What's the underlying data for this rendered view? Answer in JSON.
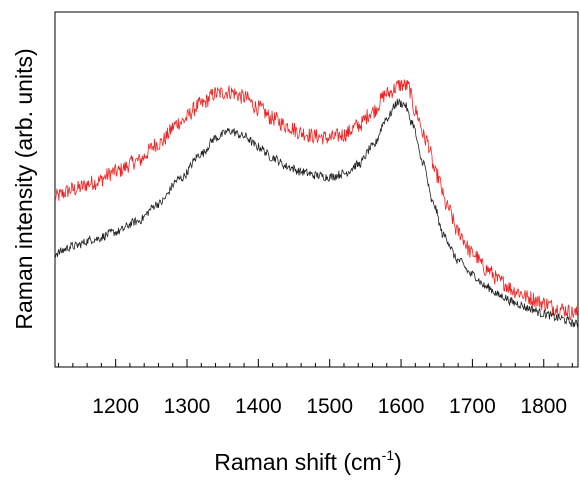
{
  "chart_data": {
    "type": "line",
    "title": "",
    "xlabel": {
      "text": "Raman shift (cm",
      "sup": "-1",
      "close": ")"
    },
    "ylabel": "Raman intensity (arb. units)",
    "xlim": [
      1115,
      1848
    ],
    "ylim": [
      0,
      1
    ],
    "x_ticks_major": [
      1200,
      1300,
      1400,
      1500,
      1600,
      1700,
      1800
    ],
    "x_tick_labels": [
      "1200",
      "1300",
      "1400",
      "1500",
      "1600",
      "1700",
      "1800"
    ],
    "x_ticks_minor_step": 20,
    "y_tick_labels_shown": false,
    "grid": false,
    "legend": "none",
    "series": [
      {
        "color": "#ee2222",
        "noise": 0.022,
        "points": [
          [
            1115,
            0.48
          ],
          [
            1140,
            0.5
          ],
          [
            1170,
            0.52
          ],
          [
            1200,
            0.55
          ],
          [
            1230,
            0.58
          ],
          [
            1260,
            0.63
          ],
          [
            1290,
            0.69
          ],
          [
            1320,
            0.74
          ],
          [
            1340,
            0.77
          ],
          [
            1360,
            0.775
          ],
          [
            1380,
            0.76
          ],
          [
            1400,
            0.73
          ],
          [
            1420,
            0.7
          ],
          [
            1440,
            0.68
          ],
          [
            1460,
            0.66
          ],
          [
            1480,
            0.65
          ],
          [
            1500,
            0.645
          ],
          [
            1520,
            0.655
          ],
          [
            1540,
            0.68
          ],
          [
            1560,
            0.72
          ],
          [
            1580,
            0.77
          ],
          [
            1600,
            0.795
          ],
          [
            1610,
            0.79
          ],
          [
            1620,
            0.72
          ],
          [
            1635,
            0.64
          ],
          [
            1650,
            0.54
          ],
          [
            1665,
            0.45
          ],
          [
            1680,
            0.38
          ],
          [
            1700,
            0.32
          ],
          [
            1720,
            0.275
          ],
          [
            1740,
            0.24
          ],
          [
            1760,
            0.215
          ],
          [
            1780,
            0.195
          ],
          [
            1800,
            0.18
          ],
          [
            1820,
            0.165
          ],
          [
            1848,
            0.15
          ]
        ]
      },
      {
        "color": "#222222",
        "noise": 0.012,
        "points": [
          [
            1115,
            0.32
          ],
          [
            1140,
            0.34
          ],
          [
            1170,
            0.36
          ],
          [
            1200,
            0.38
          ],
          [
            1230,
            0.41
          ],
          [
            1260,
            0.46
          ],
          [
            1290,
            0.53
          ],
          [
            1320,
            0.6
          ],
          [
            1340,
            0.645
          ],
          [
            1360,
            0.665
          ],
          [
            1380,
            0.65
          ],
          [
            1400,
            0.62
          ],
          [
            1420,
            0.59
          ],
          [
            1440,
            0.565
          ],
          [
            1460,
            0.55
          ],
          [
            1480,
            0.54
          ],
          [
            1500,
            0.535
          ],
          [
            1520,
            0.545
          ],
          [
            1540,
            0.57
          ],
          [
            1560,
            0.62
          ],
          [
            1580,
            0.7
          ],
          [
            1595,
            0.745
          ],
          [
            1605,
            0.74
          ],
          [
            1615,
            0.69
          ],
          [
            1630,
            0.58
          ],
          [
            1645,
            0.46
          ],
          [
            1660,
            0.37
          ],
          [
            1680,
            0.3
          ],
          [
            1700,
            0.26
          ],
          [
            1720,
            0.225
          ],
          [
            1740,
            0.2
          ],
          [
            1760,
            0.18
          ],
          [
            1780,
            0.165
          ],
          [
            1800,
            0.15
          ],
          [
            1820,
            0.138
          ],
          [
            1848,
            0.12
          ]
        ]
      }
    ]
  }
}
